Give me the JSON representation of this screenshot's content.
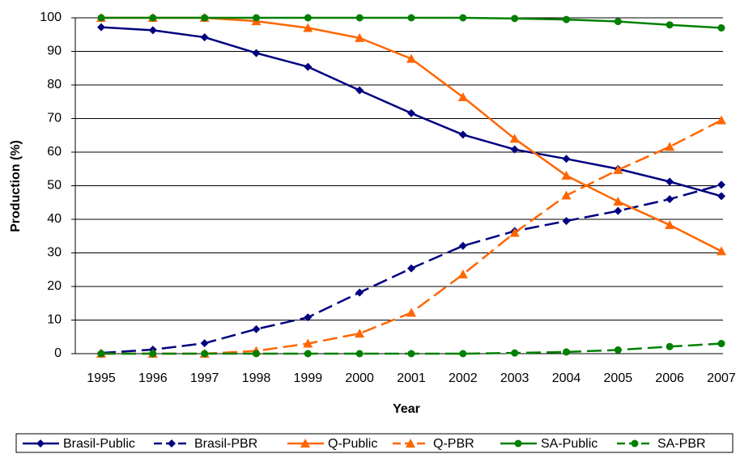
{
  "chart_data": {
    "type": "line",
    "x_label": "Year",
    "y_label": "Production (%)",
    "categories": [
      "1995",
      "1996",
      "1997",
      "1998",
      "1999",
      "2000",
      "2001",
      "2002",
      "2003",
      "2004",
      "2005",
      "2006",
      "2007"
    ],
    "ylim": [
      0,
      100
    ],
    "yticks": [
      0,
      10,
      20,
      30,
      40,
      50,
      60,
      70,
      80,
      90,
      100
    ],
    "grid": true,
    "legend": "bottom",
    "series": [
      {
        "name": "Brasil-Public",
        "color": "#000080",
        "dashed": false,
        "marker": "diamond",
        "values": [
          97.2,
          96.3,
          94.2,
          89.5,
          85.4,
          78.4,
          71.6,
          65.2,
          60.8,
          58,
          55,
          51.2,
          46.9
        ]
      },
      {
        "name": "Brasil-PBR",
        "color": "#000080",
        "dashed": true,
        "marker": "diamond",
        "values": [
          0.2,
          1.2,
          3.1,
          7.3,
          10.8,
          18.2,
          25.4,
          32.1,
          36.5,
          39.5,
          42.5,
          46,
          50.3
        ]
      },
      {
        "name": "Q-Public",
        "color": "#ff6600",
        "dashed": false,
        "marker": "triangle",
        "values": [
          100,
          100,
          100,
          99,
          97,
          94,
          87.8,
          76.4,
          64,
          53,
          45.3,
          38.3,
          30.5
        ]
      },
      {
        "name": "Q-PBR",
        "color": "#ff6600",
        "dashed": true,
        "marker": "triangle",
        "values": [
          0,
          0,
          0,
          0.8,
          3,
          6,
          12.2,
          23.6,
          36,
          47.1,
          54.7,
          61.6,
          69.5
        ]
      },
      {
        "name": "SA-Public",
        "color": "#008000",
        "dashed": false,
        "marker": "circle",
        "values": [
          100,
          100,
          100,
          100,
          100,
          100,
          100,
          100,
          99.8,
          99.5,
          98.9,
          97.9,
          97
        ]
      },
      {
        "name": "SA-PBR",
        "color": "#008000",
        "dashed": true,
        "marker": "circle",
        "values": [
          0,
          0,
          0,
          0,
          0,
          0,
          0,
          0,
          0.2,
          0.5,
          1.1,
          2.1,
          3
        ]
      }
    ]
  }
}
